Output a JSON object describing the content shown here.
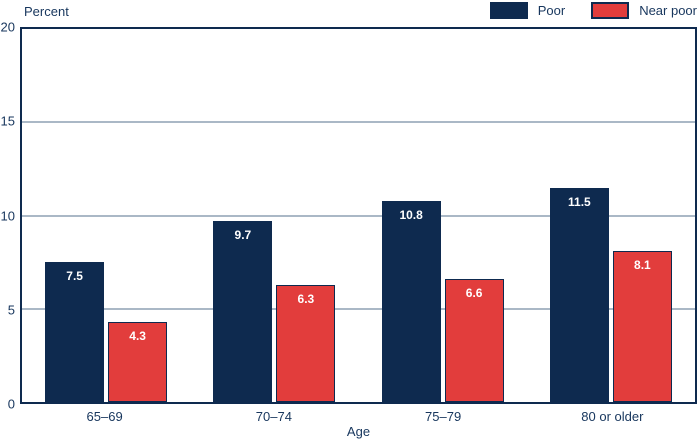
{
  "chart_data": {
    "type": "bar",
    "title": "",
    "ylabel": "Percent",
    "xlabel": "Age",
    "categories": [
      "65–69",
      "70–74",
      "75–79",
      "80 or older"
    ],
    "series": [
      {
        "name": "Poor",
        "color": "#0e2a4f",
        "values": [
          7.5,
          9.7,
          10.8,
          11.5
        ]
      },
      {
        "name": "Near poor",
        "color": "#e23d3c",
        "values": [
          4.3,
          6.3,
          6.6,
          8.1
        ]
      }
    ],
    "ylim": [
      0,
      20
    ],
    "yticks": [
      0,
      5,
      10,
      15,
      20
    ],
    "grid": true,
    "gridline_values": [
      5,
      10,
      15
    ],
    "legend_position": "top-right",
    "bar_labels": true
  },
  "colors": {
    "bar_poor": "#0e2a4f",
    "bar_near_poor": "#e23d3c",
    "plot_border": "#0e2a4f",
    "gridline": "#aab8c6",
    "axis_text": "#17365d",
    "bar_label_text": "#ffffff"
  }
}
